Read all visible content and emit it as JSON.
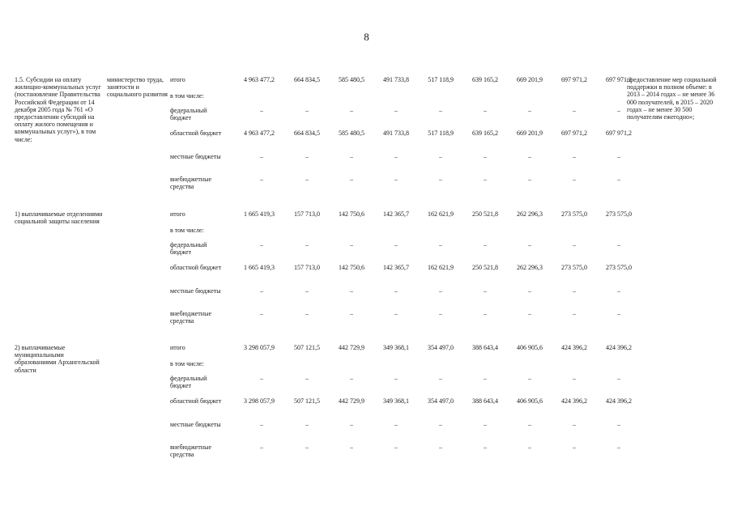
{
  "page_number": "8",
  "col_count": 9,
  "row_kinds": [
    "itogo",
    "v_tom_chisle",
    "federal",
    "oblast",
    "mestnye",
    "vnebudzhet"
  ],
  "blocks": [
    {
      "name": "1.5. Субсидии на оплату жилищно-коммунальных услуг (постановление Правительства Российской Федерации от 14 декабря 2005 года № 761 «О предоставлении субсидий на оплату жилого помещения и коммунальных услуг»), в том числе:",
      "responsible": "министерство труда, занятости и социального развития",
      "note": "предоставление мер социальной поддержки в полном объеме: в 2013 – 2014 годах – не менее 36 000 получателей, в 2015 – 2020 годах – не менее 30 500 получателям ежегодно»;",
      "rows": {
        "itogo": {
          "label": "итого",
          "values": [
            "4 963 477,2",
            "664 834,5",
            "585 480,5",
            "491 733,8",
            "517 118,9",
            "639 165,2",
            "669 201,9",
            "697 971,2",
            "697 971,2"
          ]
        },
        "v_tom_chisle": {
          "label": "в том числе:"
        },
        "federal": {
          "label": "федеральный бюджет",
          "values": [
            "–",
            "–",
            "–",
            "–",
            "–",
            "–",
            "–",
            "–",
            "–"
          ]
        },
        "oblast": {
          "label": "областной бюджет",
          "values": [
            "4 963 477,2",
            "664 834,5",
            "585 480,5",
            "491 733,8",
            "517 118,9",
            "639 165,2",
            "669 201,9",
            "697 971,2",
            "697 971,2"
          ]
        },
        "mestnye": {
          "label": "местные бюджеты",
          "values": [
            "–",
            "–",
            "–",
            "–",
            "–",
            "–",
            "–",
            "–",
            "–"
          ]
        },
        "vnebudzhet": {
          "label": "внебюджетные средства",
          "values": [
            "–",
            "–",
            "–",
            "–",
            "–",
            "–",
            "–",
            "–",
            "–"
          ]
        }
      }
    },
    {
      "name": "1) выплачиваемые отделениями социальной защиты населения",
      "responsible": "",
      "note": "",
      "rows": {
        "itogo": {
          "label": "итого",
          "values": [
            "1 665 419,3",
            "157 713,0",
            "142 750,6",
            "142 365,7",
            "162 621,9",
            "250 521,8",
            "262 296,3",
            "273 575,0",
            "273 575,0"
          ]
        },
        "v_tom_chisle": {
          "label": "в том числе:"
        },
        "federal": {
          "label": "федеральный бюджет",
          "values": [
            "–",
            "–",
            "–",
            "–",
            "–",
            "–",
            "–",
            "–",
            "–"
          ]
        },
        "oblast": {
          "label": "областной бюджет",
          "values": [
            "1 665 419,3",
            "157 713,0",
            "142 750,6",
            "142 365,7",
            "162 621,9",
            "250 521,8",
            "262 296,3",
            "273 575,0",
            "273 575,0"
          ]
        },
        "mestnye": {
          "label": "местные бюджеты",
          "values": [
            "–",
            "–",
            "–",
            "–",
            "–",
            "–",
            "–",
            "–",
            "–"
          ]
        },
        "vnebudzhet": {
          "label": "внебюджетные средства",
          "values": [
            "–",
            "–",
            "–",
            "–",
            "–",
            "–",
            "–",
            "–",
            "–"
          ]
        }
      }
    },
    {
      "name": "2) выплачиваемые муниципальными образованиями Архангельской области",
      "responsible": "",
      "note": "",
      "rows": {
        "itogo": {
          "label": "итого",
          "values": [
            "3 298 057,9",
            "507 121,5",
            "442 729,9",
            "349 368,1",
            "354 497,0",
            "388 643,4",
            "406 905,6",
            "424 396,2",
            "424 396,2"
          ]
        },
        "v_tom_chisle": {
          "label": "в том числе:"
        },
        "federal": {
          "label": "федеральный бюджет",
          "values": [
            "–",
            "–",
            "–",
            "–",
            "–",
            "–",
            "–",
            "–",
            "–"
          ]
        },
        "oblast": {
          "label": "областной бюджет",
          "values": [
            "3 298 057,9",
            "507 121,5",
            "442 729,9",
            "349 368,1",
            "354 497,0",
            "388 643,4",
            "406 905,6",
            "424 396,2",
            "424 396,2"
          ]
        },
        "mestnye": {
          "label": "местные бюджеты",
          "values": [
            "–",
            "–",
            "–",
            "–",
            "–",
            "–",
            "–",
            "–",
            "–"
          ]
        },
        "vnebudzhet": {
          "label": "внебюджетные средства",
          "values": [
            "–",
            "–",
            "–",
            "–",
            "–",
            "–",
            "–",
            "–",
            "–"
          ]
        }
      }
    }
  ]
}
